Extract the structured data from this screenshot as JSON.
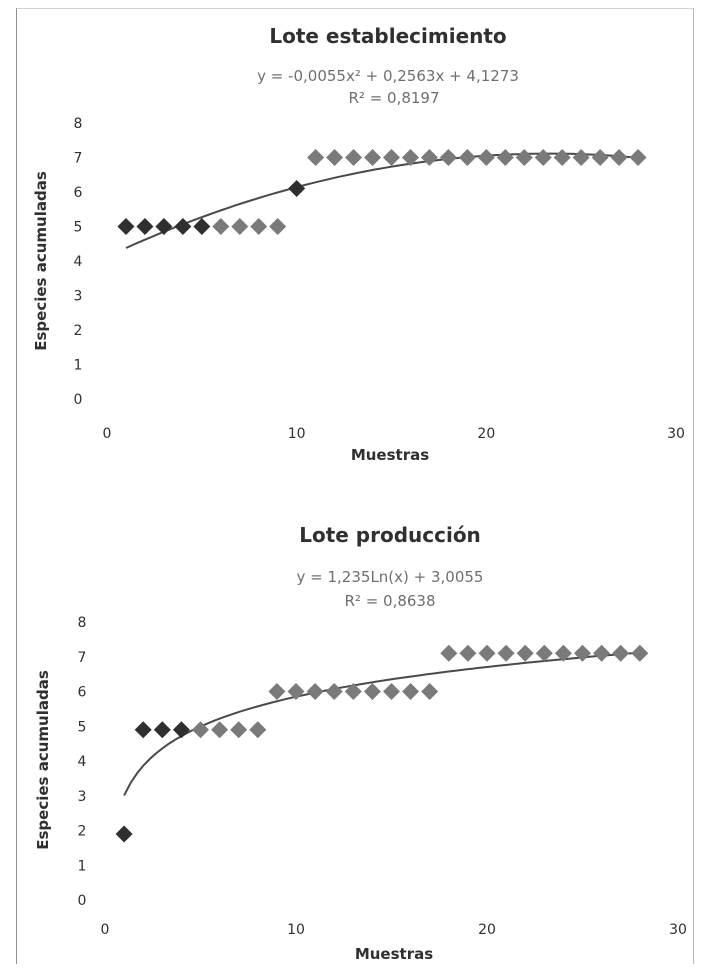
{
  "chart_data": [
    {
      "type": "scatter",
      "title": "Lote establecimiento",
      "equation": "y = -0,0055x² + 0,2563x + 4,1273",
      "r2": "R² = 0,8197",
      "xlabel": "Muestras",
      "ylabel": "Especies acumuladas",
      "xlim": [
        0,
        30
      ],
      "ylim": [
        0,
        8
      ],
      "xticks": [
        0,
        10,
        20,
        30
      ],
      "yticks": [
        0,
        1,
        2,
        3,
        4,
        5,
        6,
        7,
        8
      ],
      "grid": false,
      "legend": "none",
      "trendline": {
        "kind": "polynomial",
        "a": -0.0055,
        "b": 0.2563,
        "c": 4.1273,
        "from": 1,
        "to": 28
      },
      "colors": {
        "marker_dark": "#2f2f2f",
        "marker_light": "#7a7a7a",
        "trend": "#4a4a4a"
      },
      "x": [
        1,
        2,
        3,
        4,
        5,
        6,
        7,
        8,
        9,
        10,
        11,
        12,
        13,
        14,
        15,
        16,
        17,
        18,
        19,
        20,
        21,
        22,
        23,
        24,
        25,
        26,
        27,
        28
      ],
      "y": [
        5,
        5,
        5,
        5,
        5,
        5,
        5,
        5,
        5,
        6.1,
        7,
        7,
        7,
        7,
        7,
        7,
        7,
        7,
        7,
        7,
        7,
        7,
        7,
        7,
        7,
        7,
        7,
        7
      ]
    },
    {
      "type": "scatter",
      "title": "Lote producción",
      "equation": "y = 1,235Ln(x) + 3,0055",
      "r2": "R² = 0,8638",
      "xlabel": "Muestras",
      "ylabel": "Especies acumuladas",
      "xlim": [
        0,
        30
      ],
      "ylim": [
        0,
        8
      ],
      "xticks": [
        0,
        10,
        20,
        30
      ],
      "yticks": [
        0,
        1,
        2,
        3,
        4,
        5,
        6,
        7,
        8
      ],
      "grid": false,
      "legend": "none",
      "trendline": {
        "kind": "logarithmic",
        "a": 1.235,
        "b": 3.0055,
        "from": 1,
        "to": 28
      },
      "colors": {
        "marker_dark": "#2f2f2f",
        "marker_light": "#7a7a7a",
        "trend": "#4a4a4a"
      },
      "x": [
        1,
        2,
        3,
        4,
        5,
        6,
        7,
        8,
        9,
        10,
        11,
        12,
        13,
        14,
        15,
        16,
        17,
        18,
        19,
        20,
        21,
        22,
        23,
        24,
        25,
        26,
        27,
        28
      ],
      "y": [
        1.9,
        4.9,
        4.9,
        4.9,
        4.9,
        4.9,
        4.9,
        4.9,
        6,
        6,
        6,
        6,
        6,
        6,
        6,
        6,
        6,
        7.1,
        7.1,
        7.1,
        7.1,
        7.1,
        7.1,
        7.1,
        7.1,
        7.1,
        7.1,
        7.1
      ]
    }
  ]
}
